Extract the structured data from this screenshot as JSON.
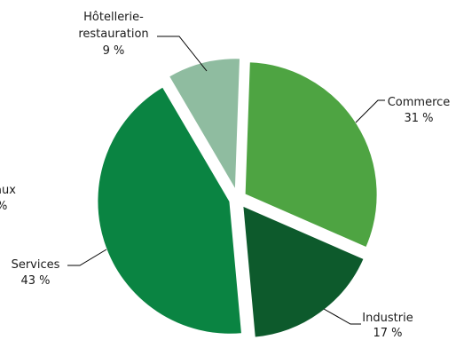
{
  "chart_data": {
    "type": "pie",
    "title": "",
    "slices": [
      {
        "label": "Commerce",
        "value": 31,
        "value_text": "31 %",
        "color": "#4ea442"
      },
      {
        "label": "Industrie",
        "value": 17,
        "value_text": "17 %",
        "color": "#0d5a2c"
      },
      {
        "label": "Services",
        "value": 43,
        "value_text": "43 %",
        "color": "#0a8442"
      },
      {
        "label": "Hôtellerie-restauration",
        "label_lines": [
          "Hôtellerie-",
          "restauration"
        ],
        "value": 9,
        "value_text": "9 %",
        "color": "#8fbca0"
      }
    ],
    "partial_labels": [
      {
        "lines": [
          "aux",
          "%"
        ]
      }
    ],
    "exploded": true,
    "legend": "none"
  }
}
